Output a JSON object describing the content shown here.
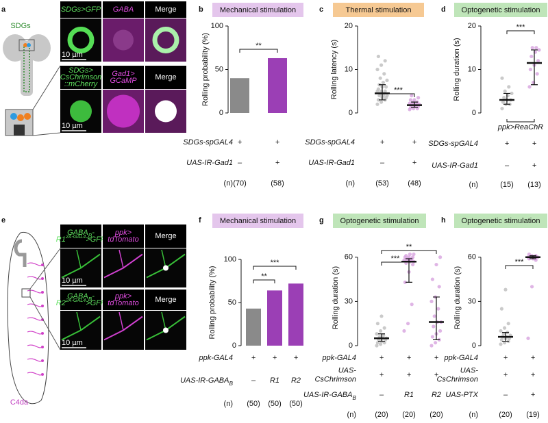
{
  "images": [
    {
      "panel": "a",
      "label": "SDGs",
      "rows": [
        {
          "headers": [
            "SDGs>GFP",
            "GABA",
            "Merge"
          ],
          "scale": "10 µm"
        },
        {
          "headers": [
            [
              "SDGs>",
              "CsChrimson",
              "::mCherry"
            ],
            [
              "Gad1>",
              "GCaMP"
            ],
            "Merge"
          ],
          "scale": "10 µm"
        }
      ]
    },
    {
      "panel": "e",
      "label": "C4da",
      "rows": [
        {
          "headers": [
            [
              [
                "GABA",
                {
                  "sub": "B"
                },
                "-"
              ],
              [
                "R1",
                {
                  "sup": "2A-GAL4"
                },
                ">GFP"
              ]
            ],
            [
              "ppk>",
              "tdTomato"
            ],
            "Merge"
          ],
          "scale": "10 µm"
        },
        {
          "headers": [
            [
              [
                "GABA",
                {
                  "sub": "B"
                },
                "-"
              ],
              [
                "R2",
                {
                  "sup": "2A-GAL4"
                },
                ">GFP"
              ]
            ],
            [
              "ppk>",
              "tdTomato"
            ],
            "Merge"
          ],
          "scale": "10 µm"
        }
      ]
    }
  ],
  "chart_data": [
    {
      "type": "bar",
      "panel": "b",
      "title": "Mechanical stimulation",
      "title_color": "#e4c6ec",
      "ylabel": "Rolling probability (%)",
      "ylim": [
        0,
        100
      ],
      "yticks": [
        0,
        50,
        100
      ],
      "values": [
        40,
        63
      ],
      "colors": [
        "#8a8a8a",
        "#9b3fb5"
      ],
      "rows": [
        {
          "label": "SDGs-spGAL4",
          "values": [
            "+",
            "+"
          ]
        },
        {
          "label": "UAS-IR-Gad1",
          "values": [
            "–",
            "+"
          ]
        }
      ],
      "n": {
        "label": "(n)",
        "values": [
          "(70)",
          "(58)"
        ]
      },
      "significance": [
        {
          "groups": [
            0,
            1
          ],
          "label": "**"
        }
      ]
    },
    {
      "type": "dot",
      "panel": "c",
      "title": "Thermal stimulation",
      "title_color": "#f6c993",
      "ylabel": "Rolling latency (s)",
      "ylim": [
        0,
        20
      ],
      "yticks": [
        0,
        10,
        20
      ],
      "series": [
        {
          "color": "#bdbdbd",
          "values": [
            2,
            2.5,
            3,
            3,
            3.5,
            3.5,
            4,
            4,
            4,
            4.5,
            4.5,
            5,
            5,
            5,
            5.5,
            6,
            6,
            6.5,
            7,
            7.5,
            8,
            9,
            10,
            11,
            12,
            13
          ],
          "median": 4.5,
          "q1": 3,
          "q3": 6.5
        },
        {
          "color": "#d7a3df",
          "values": [
            0.8,
            1,
            1,
            1.2,
            1.5,
            1.5,
            1.8,
            1.8,
            2,
            2,
            2,
            2.2,
            2.5,
            2.5,
            3,
            3,
            3.5,
            4
          ],
          "median": 1.8,
          "q1": 1.3,
          "q3": 2.5
        }
      ],
      "rows": [
        {
          "label": "SDGs-spGAL4",
          "values": [
            "+",
            "+"
          ]
        },
        {
          "label": "UAS-IR-Gad1",
          "values": [
            "–",
            "+"
          ]
        }
      ],
      "n": {
        "label": "(n)",
        "values": [
          "(53)",
          "(48)"
        ]
      },
      "significance": [
        {
          "groups": [
            0,
            1
          ],
          "label": "***"
        }
      ]
    },
    {
      "type": "dot",
      "panel": "d",
      "title": "Optogenetic stimulation",
      "title_color": "#bfe5b9",
      "ylabel": "Rolling duration (s)",
      "ylim": [
        0,
        20
      ],
      "yticks": [
        0,
        10,
        20
      ],
      "annotation": "ppk>ReaChR",
      "series": [
        {
          "color": "#bdbdbd",
          "values": [
            1,
            2,
            2,
            2.5,
            3,
            3,
            3.5,
            4,
            4.5,
            5,
            6,
            8
          ],
          "median": 3,
          "q1": 2,
          "q3": 4.5
        },
        {
          "color": "#d7a3df",
          "values": [
            6,
            7,
            9,
            10,
            11,
            12,
            13,
            14,
            14.5,
            15,
            15
          ],
          "median": 11.5,
          "q1": 6.5,
          "q3": 14.5
        }
      ],
      "rows": [
        {
          "label": "SDGs-spGAL4",
          "values": [
            "+",
            "+"
          ]
        },
        {
          "label": "UAS-IR-Gad1",
          "values": [
            "–",
            "+"
          ]
        }
      ],
      "n": {
        "label": "(n)",
        "values": [
          "(15)",
          "(13)"
        ]
      },
      "significance": [
        {
          "groups": [
            0,
            1
          ],
          "label": "***"
        }
      ]
    },
    {
      "type": "bar",
      "panel": "f",
      "title": "Mechanical stimulation",
      "title_color": "#e4c6ec",
      "ylabel": "Rolling probability (%)",
      "ylim": [
        0,
        100
      ],
      "yticks": [
        0,
        50,
        100
      ],
      "values": [
        43,
        64,
        72
      ],
      "colors": [
        "#8a8a8a",
        "#9b3fb5",
        "#9b3fb5"
      ],
      "rows": [
        {
          "label": "ppk-GAL4",
          "values": [
            "+",
            "+",
            "+"
          ]
        },
        {
          "label": [
            [
              "UAS-IR-GABA",
              {
                "sub": "B"
              }
            ]
          ],
          "values": [
            "–",
            "R1",
            "R2"
          ]
        }
      ],
      "n": {
        "label": "(n)",
        "values": [
          "(50)",
          "(50)",
          "(50)"
        ]
      },
      "significance": [
        {
          "groups": [
            0,
            1
          ],
          "label": "**"
        },
        {
          "groups": [
            0,
            2
          ],
          "label": "***"
        }
      ]
    },
    {
      "type": "dot",
      "panel": "g",
      "title": "Optogenetic stimulation",
      "title_color": "#bfe5b9",
      "ylabel": "Rolling duration (s)",
      "ylim": [
        0,
        65
      ],
      "yticks": [
        0,
        30,
        60
      ],
      "series": [
        {
          "color": "#bdbdbd",
          "values": [
            0,
            1,
            2,
            2,
            3,
            4,
            4,
            5,
            5,
            6,
            7,
            8,
            10,
            12,
            15,
            20
          ],
          "median": 5,
          "q1": 3,
          "q3": 8
        },
        {
          "color": "#d7a3df",
          "values": [
            10,
            15,
            28,
            43,
            50,
            55,
            56,
            57,
            57,
            58,
            58,
            58,
            59,
            59,
            60,
            60,
            60,
            61,
            62,
            62
          ],
          "median": 57,
          "q1": 43,
          "q3": 59
        },
        {
          "color": "#d7a3df",
          "values": [
            0,
            2,
            4,
            6,
            8,
            10,
            13,
            16,
            16,
            20,
            25,
            30,
            33,
            40,
            45,
            55,
            60
          ],
          "median": 16,
          "q1": 4,
          "q3": 33
        }
      ],
      "rows": [
        {
          "label": "ppk-GAL4",
          "values": [
            "+",
            "+",
            "+"
          ]
        },
        {
          "label": [
            "UAS-",
            "CsChrimson"
          ],
          "values": [
            "+",
            "+",
            "+"
          ]
        },
        {
          "label": [
            [
              "UAS-IR-GABA",
              {
                "sub": "B"
              }
            ]
          ],
          "values": [
            "–",
            "R1",
            "R2"
          ]
        }
      ],
      "n": {
        "label": "(n)",
        "values": [
          "(20)",
          "(20)",
          "(20)"
        ]
      },
      "significance": [
        {
          "groups": [
            0,
            1
          ],
          "label": "***"
        },
        {
          "groups": [
            0,
            2
          ],
          "label": "**"
        }
      ]
    },
    {
      "type": "dot",
      "panel": "h",
      "title": "Optogenetic stimulation",
      "title_color": "#bfe5b9",
      "ylabel": "Rolling duration (s)",
      "ylim": [
        0,
        65
      ],
      "yticks": [
        0,
        30,
        60
      ],
      "series": [
        {
          "color": "#bdbdbd",
          "values": [
            1,
            2,
            3,
            4,
            5,
            5,
            6,
            6,
            7,
            8,
            9,
            10,
            12,
            15,
            25,
            38
          ],
          "median": 6,
          "q1": 3,
          "q3": 9
        },
        {
          "color": "#d7a3df",
          "values": [
            5,
            40,
            58,
            59,
            59,
            60,
            60,
            60,
            60,
            60,
            60,
            60,
            61,
            61,
            62
          ],
          "median": 60,
          "q1": 59,
          "q3": 61
        }
      ],
      "rows": [
        {
          "label": "ppk-GAL4",
          "values": [
            "+",
            "+"
          ]
        },
        {
          "label": [
            "UAS-",
            "CsChrimson"
          ],
          "values": [
            "+",
            "+"
          ]
        },
        {
          "label": "UAS-PTX",
          "values": [
            "–",
            "+"
          ]
        }
      ],
      "n": {
        "label": "(n)",
        "values": [
          "(20)",
          "(19)"
        ]
      },
      "significance": [
        {
          "groups": [
            0,
            1
          ],
          "label": "***"
        }
      ]
    }
  ]
}
